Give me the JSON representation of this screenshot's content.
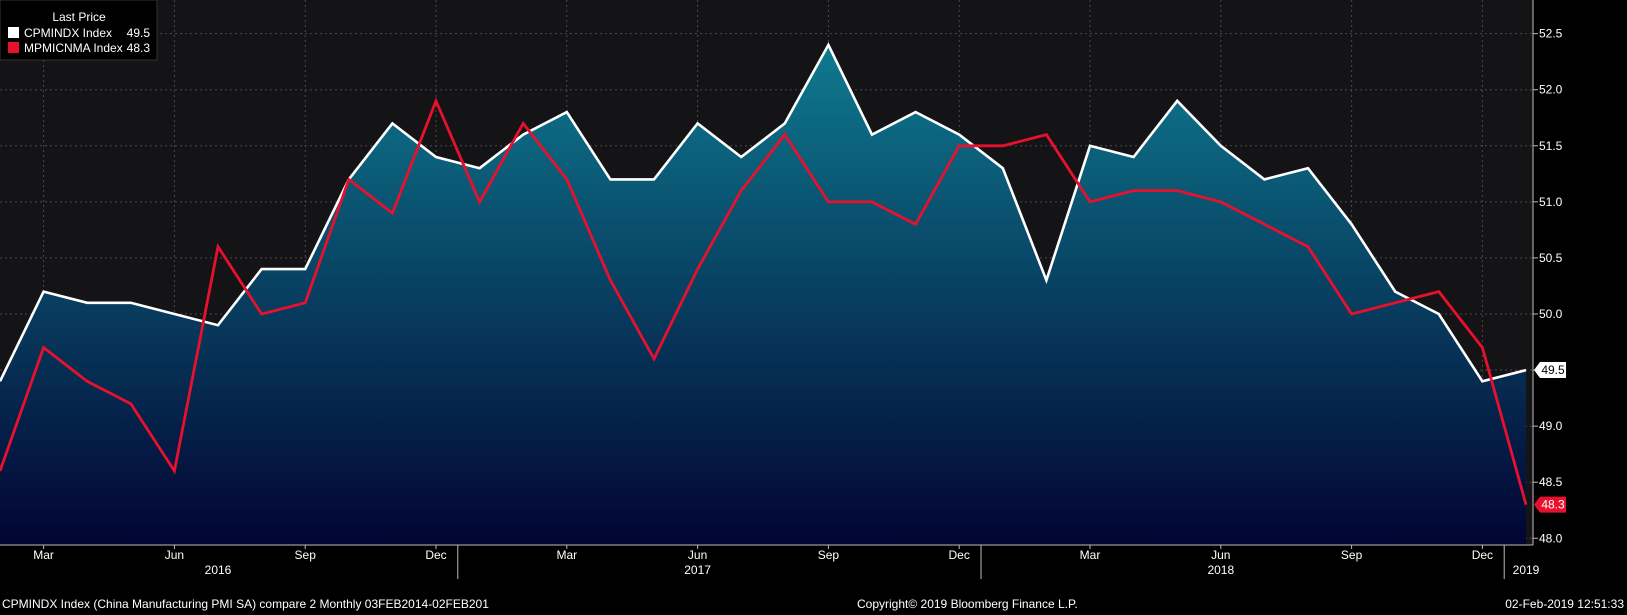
{
  "legend": {
    "title": "Last Price",
    "items": [
      {
        "name": "CPMINDX Index",
        "value": "49.5",
        "color": "#ffffff"
      },
      {
        "name": "MPMICNMA Index",
        "value": "48.3",
        "color": "#e8112d"
      }
    ]
  },
  "footer": {
    "left": "CPMINDX Index (China Manufacturing PMI SA) compare 2  Monthly 03FEB2014-02FEB201",
    "center": "Copyright© 2019 Bloomberg Finance L.P.",
    "right": "02-Feb-2019 12:51:33"
  },
  "colors": {
    "background": "#000000",
    "plot_background": "#141416",
    "area_top": "#0e7a8f",
    "area_bottom": "#020432",
    "series1": "#ffffff",
    "series2": "#e8112d",
    "grid": "#4a4a4a"
  },
  "chart_data": {
    "type": "line",
    "x": [
      "2016-02",
      "2016-03",
      "2016-04",
      "2016-05",
      "2016-06",
      "2016-07",
      "2016-08",
      "2016-09",
      "2016-10",
      "2016-11",
      "2016-12",
      "2017-01",
      "2017-02",
      "2017-03",
      "2017-04",
      "2017-05",
      "2017-06",
      "2017-07",
      "2017-08",
      "2017-09",
      "2017-10",
      "2017-11",
      "2017-12",
      "2018-01",
      "2018-02",
      "2018-03",
      "2018-04",
      "2018-05",
      "2018-06",
      "2018-07",
      "2018-08",
      "2018-09",
      "2018-10",
      "2018-11",
      "2018-12",
      "2019-01"
    ],
    "series": [
      {
        "name": "CPMINDX Index",
        "style": "area",
        "values": [
          49.4,
          50.2,
          50.1,
          50.1,
          50.0,
          49.9,
          50.4,
          50.4,
          51.2,
          51.7,
          51.4,
          51.3,
          51.6,
          51.8,
          51.2,
          51.2,
          51.7,
          51.4,
          51.7,
          52.4,
          51.6,
          51.8,
          51.6,
          51.3,
          50.3,
          51.5,
          51.4,
          51.9,
          51.5,
          51.2,
          51.3,
          50.8,
          50.2,
          50.0,
          49.4,
          49.5
        ]
      },
      {
        "name": "MPMICNMA Index",
        "style": "line",
        "values": [
          48.6,
          49.7,
          49.4,
          49.2,
          48.6,
          50.6,
          50.0,
          50.1,
          51.2,
          50.9,
          51.9,
          51.0,
          51.7,
          51.2,
          50.3,
          49.6,
          50.4,
          51.1,
          51.6,
          51.0,
          51.0,
          50.8,
          51.5,
          51.5,
          51.6,
          51.0,
          51.1,
          51.1,
          51.0,
          50.8,
          50.6,
          50.0,
          50.1,
          50.2,
          49.7,
          48.3
        ]
      }
    ],
    "y_ticks": [
      "48.0",
      "48.5",
      "49.0",
      "49.5",
      "50.0",
      "50.5",
      "51.0",
      "51.5",
      "52.0",
      "52.5"
    ],
    "ylim": [
      47.94,
      52.8
    ],
    "month_ticks": [
      {
        "x": "2016-03",
        "label": "Mar"
      },
      {
        "x": "2016-06",
        "label": "Jun"
      },
      {
        "x": "2016-09",
        "label": "Sep"
      },
      {
        "x": "2016-12",
        "label": "Dec"
      },
      {
        "x": "2017-03",
        "label": "Mar"
      },
      {
        "x": "2017-06",
        "label": "Jun"
      },
      {
        "x": "2017-09",
        "label": "Sep"
      },
      {
        "x": "2017-12",
        "label": "Dec"
      },
      {
        "x": "2018-03",
        "label": "Mar"
      },
      {
        "x": "2018-06",
        "label": "Jun"
      },
      {
        "x": "2018-09",
        "label": "Sep"
      },
      {
        "x": "2018-12",
        "label": "Dec"
      }
    ],
    "year_labels": [
      {
        "x": "2016-07",
        "label": "2016"
      },
      {
        "x": "2017-06",
        "label": "2017"
      },
      {
        "x": "2018-06",
        "label": "2018"
      },
      {
        "x": "2019-01",
        "label": "2019"
      }
    ],
    "year_dividers": [
      "2017-01",
      "2018-01",
      "2019-01"
    ],
    "grid": true,
    "legend_position": "top-left",
    "last_value_labels": [
      "49.5",
      "48.3"
    ]
  }
}
